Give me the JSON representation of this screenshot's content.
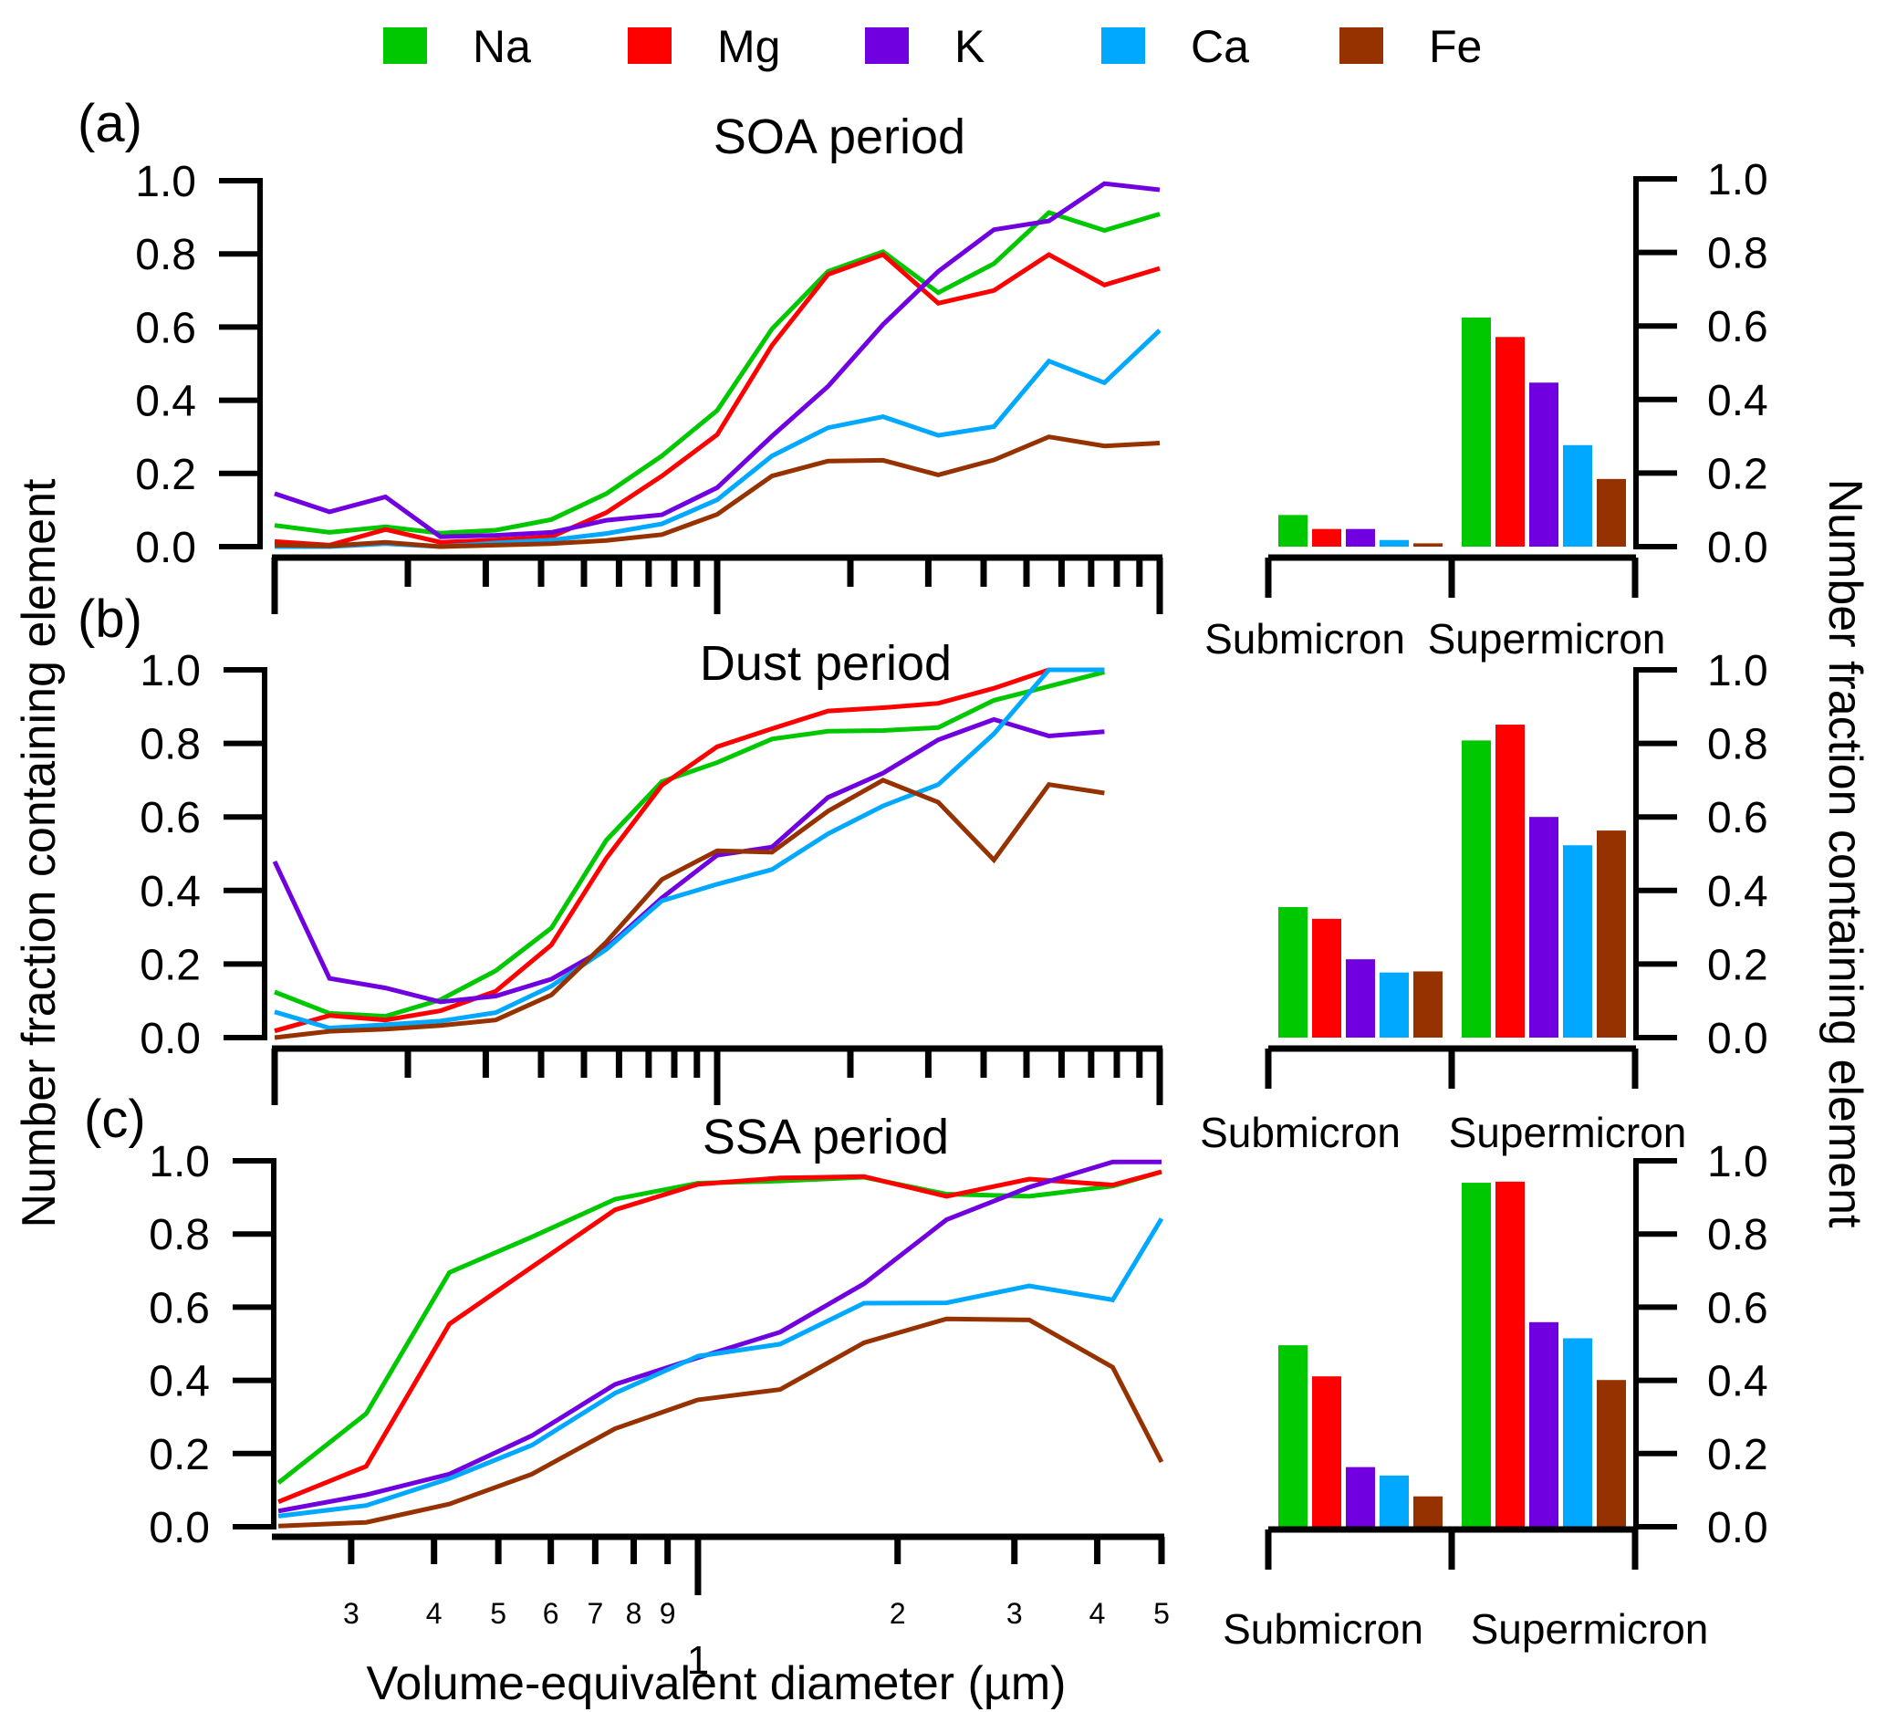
{
  "legend": {
    "items": [
      {
        "name": "Na",
        "color": "#00c800"
      },
      {
        "name": "Mg",
        "color": "#ff0000"
      },
      {
        "name": "K",
        "color": "#7000e0"
      },
      {
        "name": "Ca",
        "color": "#00a8ff"
      },
      {
        "name": "Fe",
        "color": "#963200"
      }
    ]
  },
  "labels": {
    "left_ylabel": "Number fraction containing element",
    "right_ylabel": "Number fraction containing element",
    "xlabel": "Volume-equivalent diameter (µm)"
  },
  "chart_data": [
    {
      "type": "line",
      "panel": "(a)",
      "title": "SOA period",
      "xscale": "log",
      "xlim": [
        0.1,
        10
      ],
      "ylim": [
        0,
        1
      ],
      "yticks": [
        "0.0",
        "0.2",
        "0.4",
        "0.6",
        "0.8",
        "1.0"
      ],
      "xlabel": "Volume-equivalent diameter (µm)",
      "ylabel": "Number fraction containing element",
      "x": [
        0.1,
        0.133,
        0.178,
        0.237,
        0.316,
        0.422,
        0.562,
        0.75,
        1.0,
        1.33,
        1.78,
        2.37,
        3.16,
        4.22,
        5.62,
        7.5,
        10
      ],
      "series": [
        {
          "name": "Na",
          "values": [
            0.058,
            0.039,
            0.054,
            0.037,
            0.045,
            0.074,
            0.145,
            0.248,
            0.372,
            0.595,
            0.752,
            0.806,
            0.694,
            0.773,
            0.913,
            0.864,
            0.909
          ]
        },
        {
          "name": "Mg",
          "values": [
            0.014,
            0.004,
            0.047,
            0.012,
            0.018,
            0.027,
            0.093,
            0.193,
            0.306,
            0.55,
            0.744,
            0.798,
            0.665,
            0.7,
            0.798,
            0.715,
            0.76
          ]
        },
        {
          "name": "K",
          "values": [
            0.145,
            0.095,
            0.136,
            0.027,
            0.031,
            0.039,
            0.072,
            0.087,
            0.161,
            0.302,
            0.438,
            0.607,
            0.752,
            0.866,
            0.89,
            0.992,
            0.975
          ]
        },
        {
          "name": "Ca",
          "values": [
            0.0,
            0.0,
            0.008,
            0.0,
            0.01,
            0.018,
            0.036,
            0.062,
            0.128,
            0.248,
            0.325,
            0.355,
            0.304,
            0.328,
            0.507,
            0.448,
            0.591
          ]
        },
        {
          "name": "Fe",
          "values": [
            0.004,
            0.002,
            0.012,
            0.0,
            0.004,
            0.008,
            0.017,
            0.033,
            0.088,
            0.193,
            0.234,
            0.236,
            0.196,
            0.237,
            0.3,
            0.275,
            0.283
          ]
        }
      ]
    },
    {
      "type": "bar",
      "panel": "(a)",
      "categories": [
        "Submicron",
        "Supermicron"
      ],
      "ylim": [
        0,
        1
      ],
      "yticks": [
        "0.0",
        "0.2",
        "0.4",
        "0.6",
        "0.8",
        "1.0"
      ],
      "series": [
        {
          "name": "Na",
          "values": [
            0.086,
            0.623
          ]
        },
        {
          "name": "Mg",
          "values": [
            0.048,
            0.57
          ]
        },
        {
          "name": "K",
          "values": [
            0.048,
            0.446
          ]
        },
        {
          "name": "Ca",
          "values": [
            0.018,
            0.276
          ]
        },
        {
          "name": "Fe",
          "values": [
            0.009,
            0.184
          ]
        }
      ]
    },
    {
      "type": "line",
      "panel": "(b)",
      "title": "Dust period",
      "xscale": "log",
      "xlim": [
        0.1,
        10
      ],
      "ylim": [
        0,
        1
      ],
      "yticks": [
        "0.0",
        "0.2",
        "0.4",
        "0.6",
        "0.8",
        "1.0"
      ],
      "x": [
        0.1,
        0.133,
        0.178,
        0.237,
        0.316,
        0.422,
        0.562,
        0.75,
        1.0,
        1.33,
        1.78,
        2.37,
        3.16,
        4.22,
        5.62,
        7.5
      ],
      "series": [
        {
          "name": "Na",
          "values": [
            0.124,
            0.066,
            0.058,
            0.103,
            0.182,
            0.298,
            0.537,
            0.696,
            0.748,
            0.812,
            0.833,
            0.835,
            0.843,
            0.917,
            0.955,
            0.994
          ]
        },
        {
          "name": "Mg",
          "values": [
            0.018,
            0.06,
            0.048,
            0.073,
            0.126,
            0.252,
            0.488,
            0.686,
            0.791,
            0.84,
            0.888,
            0.897,
            0.909,
            0.95,
            1.0,
            1.0
          ]
        },
        {
          "name": "K",
          "values": [
            0.479,
            0.161,
            0.135,
            0.097,
            0.113,
            0.159,
            0.244,
            0.38,
            0.496,
            0.518,
            0.653,
            0.719,
            0.81,
            0.865,
            0.82,
            0.832
          ]
        },
        {
          "name": "Ca",
          "values": [
            0.07,
            0.026,
            0.035,
            0.045,
            0.068,
            0.14,
            0.24,
            0.372,
            0.417,
            0.457,
            0.554,
            0.63,
            0.688,
            0.826,
            1.0,
            1.0
          ]
        },
        {
          "name": "Fe",
          "values": [
            0.0,
            0.017,
            0.023,
            0.033,
            0.048,
            0.116,
            0.26,
            0.43,
            0.508,
            0.504,
            0.616,
            0.7,
            0.64,
            0.483,
            0.688,
            0.665
          ]
        }
      ]
    },
    {
      "type": "bar",
      "panel": "(b)",
      "categories": [
        "Submicron",
        "Supermicron"
      ],
      "ylim": [
        0,
        1
      ],
      "yticks": [
        "0.0",
        "0.2",
        "0.4",
        "0.6",
        "0.8",
        "1.0"
      ],
      "series": [
        {
          "name": "Na",
          "values": [
            0.355,
            0.808
          ]
        },
        {
          "name": "Mg",
          "values": [
            0.323,
            0.851
          ]
        },
        {
          "name": "K",
          "values": [
            0.213,
            0.6
          ]
        },
        {
          "name": "Ca",
          "values": [
            0.177,
            0.523
          ]
        },
        {
          "name": "Fe",
          "values": [
            0.18,
            0.563
          ]
        }
      ]
    },
    {
      "type": "line",
      "panel": "(c)",
      "title": "SSA period",
      "xscale": "log",
      "xlim": [
        0.23,
        5
      ],
      "ylim": [
        0,
        1
      ],
      "yticks": [
        "0.0",
        "0.2",
        "0.4",
        "0.6",
        "0.8",
        "1.0"
      ],
      "xticks_minor_labels": [
        {
          "v": 0.3,
          "t": "3"
        },
        {
          "v": 0.4,
          "t": "4"
        },
        {
          "v": 0.5,
          "t": "5"
        },
        {
          "v": 0.6,
          "t": "6"
        },
        {
          "v": 0.7,
          "t": "7"
        },
        {
          "v": 0.8,
          "t": "8"
        },
        {
          "v": 0.9,
          "t": "9"
        },
        {
          "v": 2,
          "t": "2"
        },
        {
          "v": 3,
          "t": "3"
        },
        {
          "v": 4,
          "t": "4"
        },
        {
          "v": 5,
          "t": "5"
        }
      ],
      "xticks_major_labels": [
        {
          "v": 1,
          "t": "1"
        }
      ],
      "x": [
        0.233,
        0.316,
        0.422,
        0.562,
        0.75,
        1.0,
        1.33,
        1.78,
        2.37,
        3.16,
        4.22,
        5.0
      ],
      "series": [
        {
          "name": "Na",
          "values": [
            0.12,
            0.309,
            0.695,
            0.792,
            0.895,
            0.939,
            0.945,
            0.955,
            0.909,
            0.903,
            0.931,
            0.97
          ]
        },
        {
          "name": "Mg",
          "values": [
            0.068,
            0.165,
            0.554,
            0.71,
            0.866,
            0.936,
            0.953,
            0.957,
            0.903,
            0.95,
            0.934,
            0.97
          ]
        },
        {
          "name": "K",
          "values": [
            0.043,
            0.087,
            0.144,
            0.249,
            0.389,
            0.462,
            0.532,
            0.664,
            0.839,
            0.928,
            0.997,
            0.997
          ]
        },
        {
          "name": "Ca",
          "values": [
            0.029,
            0.058,
            0.132,
            0.223,
            0.365,
            0.466,
            0.499,
            0.611,
            0.612,
            0.658,
            0.62,
            0.842
          ]
        },
        {
          "name": "Fe",
          "values": [
            0.002,
            0.012,
            0.062,
            0.144,
            0.268,
            0.347,
            0.375,
            0.503,
            0.568,
            0.565,
            0.436,
            0.177
          ]
        }
      ]
    },
    {
      "type": "bar",
      "panel": "(c)",
      "categories": [
        "Submicron",
        "Supermicron"
      ],
      "ylim": [
        0,
        1
      ],
      "yticks": [
        "0.0",
        "0.2",
        "0.4",
        "0.6",
        "0.8",
        "1.0"
      ],
      "series": [
        {
          "name": "Na",
          "values": [
            0.496,
            0.94
          ]
        },
        {
          "name": "Mg",
          "values": [
            0.411,
            0.943
          ]
        },
        {
          "name": "K",
          "values": [
            0.163,
            0.559
          ]
        },
        {
          "name": "Ca",
          "values": [
            0.14,
            0.515
          ]
        },
        {
          "name": "Fe",
          "values": [
            0.083,
            0.401
          ]
        }
      ]
    }
  ]
}
